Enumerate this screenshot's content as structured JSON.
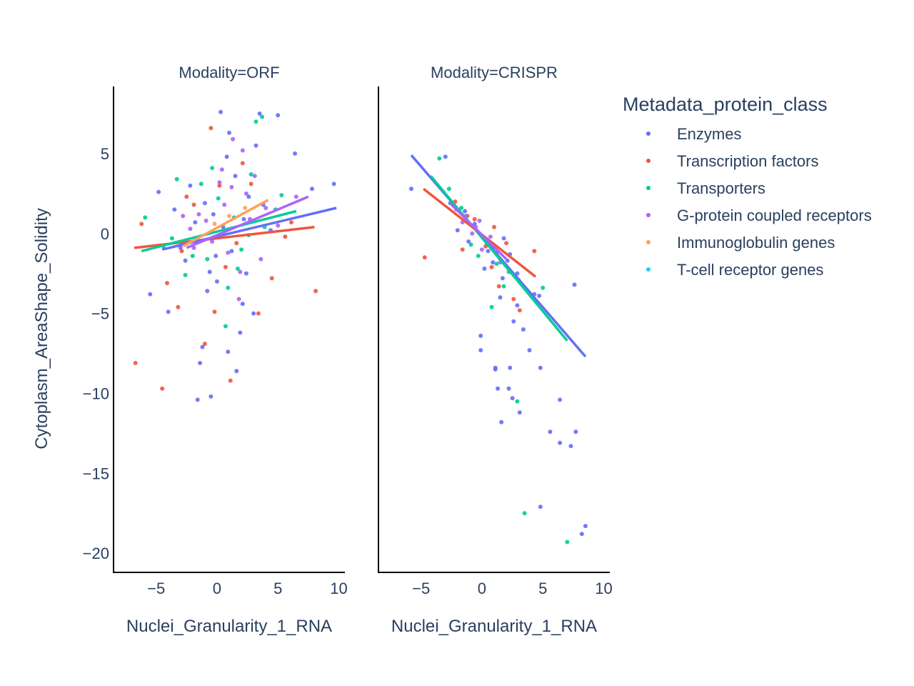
{
  "chart_data": {
    "type": "scatter",
    "legend_title": "Metadata_protein_class",
    "legend_placement": "right",
    "grid": false,
    "categories": [
      {
        "name": "Enzymes",
        "color": "#636efa"
      },
      {
        "name": "Transcription factors",
        "color": "#ef553b"
      },
      {
        "name": "Transporters",
        "color": "#00cc96"
      },
      {
        "name": "G-protein coupled receptors",
        "color": "#ab63fa"
      },
      {
        "name": "Immunoglobulin genes",
        "color": "#ffa15a"
      },
      {
        "name": "T-cell receptor genes",
        "color": "#19d3f3"
      }
    ],
    "xlabel": "Nuclei_Granularity_1_RNA",
    "ylabel": "Cytoplasm_AreaShape_Solidity",
    "xlim": [
      -8.5,
      10.5
    ],
    "ylim": [
      -21.2,
      9.2
    ],
    "x_ticks": [
      {
        "v": -5,
        "label": "−5"
      },
      {
        "v": 0,
        "label": "0"
      },
      {
        "v": 5,
        "label": "5"
      },
      {
        "v": 10,
        "label": "10"
      }
    ],
    "y_ticks": [
      {
        "v": 5,
        "label": "5"
      },
      {
        "v": 0,
        "label": "0"
      },
      {
        "v": -5,
        "label": "−5"
      },
      {
        "v": -10,
        "label": "−10"
      },
      {
        "v": -15,
        "label": "−15"
      },
      {
        "v": -20,
        "label": "−20"
      }
    ],
    "panels": [
      {
        "title": "Modality=ORF",
        "trendlines": [
          {
            "series": "Transcription factors",
            "x": [
              -6.8,
              8.0
            ],
            "y": [
              -0.9,
              0.4
            ]
          },
          {
            "series": "Transporters",
            "x": [
              -6.2,
              6.5
            ],
            "y": [
              -1.1,
              1.4
            ]
          },
          {
            "series": "Enzymes",
            "x": [
              -4.5,
              9.8
            ],
            "y": [
              -1.0,
              1.6
            ]
          },
          {
            "series": "G-protein coupled receptors",
            "x": [
              -2.5,
              7.5
            ],
            "y": [
              -0.9,
              2.3
            ]
          },
          {
            "series": "Immunoglobulin genes",
            "x": [
              -2.8,
              4.2
            ],
            "y": [
              -0.8,
              2.1
            ]
          }
        ],
        "points": [
          {
            "series": "Enzymes",
            "x": [
              0.3,
              3.5,
              5.0,
              9.6,
              7.8,
              -4.8,
              -5.5,
              -1.6,
              -1.4,
              -0.5,
              1.6,
              1.9,
              3.0,
              -3.5,
              0.8,
              2.1,
              -2.2,
              -0.6,
              0.5,
              1.2,
              -1.0,
              2.6,
              -3.0,
              -1.8,
              3.8,
              0.0,
              1.5,
              -2.6,
              4.4,
              -0.3,
              2.4,
              -4.0,
              6.4,
              0.9,
              -1.2,
              1.0,
              -0.8,
              3.2,
              -0.1,
              2.2
            ],
            "y": [
              7.6,
              7.5,
              7.4,
              3.1,
              2.8,
              2.6,
              -3.8,
              -10.4,
              -8.1,
              -10.2,
              -8.6,
              -6.2,
              -5.0,
              1.5,
              4.8,
              -4.4,
              3.0,
              -2.4,
              0.4,
              -1.1,
              1.9,
              2.3,
              -0.9,
              0.7,
              1.8,
              -3.0,
              3.6,
              -1.7,
              0.2,
              1.2,
              -2.5,
              -4.9,
              5.0,
              -7.4,
              -7.1,
              6.3,
              -3.6,
              5.5,
              -1.4,
              0.9
            ]
          },
          {
            "series": "Transcription factors",
            "x": [
              -6.7,
              -4.5,
              -6.2,
              8.1,
              1.1,
              -2.5,
              -1.0,
              3.4,
              -0.5,
              2.1,
              4.5,
              -3.2,
              1.6,
              -1.9,
              0.7,
              5.6,
              -4.1,
              2.8,
              -0.2,
              6.1,
              0.2,
              -2.9
            ],
            "y": [
              -8.1,
              -9.7,
              0.6,
              -3.6,
              -9.2,
              2.3,
              -6.9,
              -5.0,
              6.6,
              4.4,
              -2.8,
              -4.6,
              -0.6,
              1.8,
              -2.1,
              -0.2,
              -3.1,
              3.1,
              -4.9,
              0.7,
              3.0,
              -1.1
            ]
          },
          {
            "series": "Transporters",
            "x": [
              3.2,
              3.7,
              -5.9,
              2.8,
              -3.3,
              0.7,
              1.7,
              -2.0,
              4.8,
              0.1,
              -1.3,
              2.6,
              -4.4,
              3.9,
              0.9,
              -0.8,
              1.4,
              5.3,
              -2.6,
              2.0,
              -0.4,
              -3.7
            ],
            "y": [
              7.0,
              7.3,
              1.0,
              3.7,
              3.4,
              -5.8,
              -2.2,
              -1.4,
              1.5,
              2.2,
              3.1,
              -0.1,
              -0.8,
              0.4,
              -3.4,
              -1.6,
              1.0,
              2.4,
              -2.6,
              -1.0,
              4.1,
              -0.3
            ]
          },
          {
            "series": "G-protein coupled receptors",
            "x": [
              1.3,
              2.1,
              6.5,
              0.4,
              -1.5,
              1.8,
              3.1,
              -0.9,
              2.4,
              0.9,
              -2.2,
              4.0,
              1.2,
              -0.4,
              2.7,
              0.6,
              3.6,
              -1.9,
              1.9,
              0.2,
              5.0,
              -2.8
            ],
            "y": [
              5.9,
              5.2,
              2.3,
              4.0,
              1.2,
              -4.1,
              3.6,
              0.8,
              2.5,
              -1.2,
              0.3,
              1.6,
              2.9,
              -0.5,
              0.9,
              1.8,
              -1.6,
              -0.9,
              -2.4,
              3.2,
              0.5,
              1.1
            ]
          },
          {
            "series": "Immunoglobulin genes",
            "x": [
              -0.2,
              1.0,
              2.3
            ],
            "y": [
              0.6,
              1.1,
              1.6
            ]
          }
        ]
      },
      {
        "title": "Modality=CRISPR",
        "trendlines": [
          {
            "series": "Enzymes",
            "x": [
              -5.8,
              8.5
            ],
            "y": [
              4.9,
              -7.7
            ]
          },
          {
            "series": "Transporters",
            "x": [
              -4.2,
              7.0
            ],
            "y": [
              3.6,
              -6.7
            ]
          },
          {
            "series": "Transcription factors",
            "x": [
              -4.8,
              4.4
            ],
            "y": [
              2.8,
              -2.7
            ]
          },
          {
            "series": "G-protein coupled receptors",
            "x": [
              -2.5,
              2.0
            ],
            "y": [
              1.8,
              -1.6
            ]
          }
        ],
        "points": [
          {
            "series": "Enzymes",
            "x": [
              -3.0,
              -5.8,
              -0.1,
              -0.1,
              1.1,
              1.3,
              2.2,
              1.6,
              2.3,
              1.1,
              2.5,
              3.1,
              3.9,
              4.8,
              5.6,
              6.4,
              7.7,
              7.3,
              8.5,
              8.2,
              4.8,
              6.4,
              7.6,
              4.3,
              4.7,
              2.1,
              2.9,
              1.5,
              2.6,
              3.4,
              2.9,
              -1.4,
              0.5,
              -0.6,
              -2.0,
              1.8,
              0.2,
              -1.1,
              0.9,
              -2.6,
              2.3,
              1.7
            ],
            "y": [
              4.8,
              2.8,
              -6.4,
              -7.3,
              -8.4,
              -9.7,
              -9.7,
              -11.8,
              -8.4,
              -8.5,
              -10.3,
              -11.2,
              -7.3,
              -8.4,
              -12.4,
              -13.1,
              -12.4,
              -13.3,
              -18.3,
              -18.8,
              -17.1,
              -10.4,
              -3.2,
              -3.8,
              -3.9,
              -1.7,
              -2.5,
              -4.0,
              -5.5,
              -6.0,
              -4.5,
              1.4,
              -1.1,
              0.6,
              0.2,
              -0.3,
              -2.2,
              -0.5,
              -1.8,
              1.9,
              -1.3,
              -2.8
            ]
          },
          {
            "series": "Transcription factors",
            "x": [
              -4.7,
              -1.2,
              3.1,
              4.3,
              2.0,
              1.4,
              -0.6,
              0.8,
              -2.2,
              2.6,
              1.0,
              -1.6,
              3.0,
              0.3
            ],
            "y": [
              -1.5,
              1.1,
              -4.8,
              -1.1,
              -0.6,
              -3.3,
              0.9,
              -2.1,
              2.0,
              -4.1,
              0.4,
              -1.0,
              -2.9,
              -0.8
            ]
          },
          {
            "series": "Transporters",
            "x": [
              -3.5,
              2.9,
              3.5,
              7.0,
              5.0,
              0.8,
              1.8,
              -1.7,
              -0.3,
              2.2,
              1.2,
              -2.7,
              0.1,
              -0.9
            ],
            "y": [
              4.7,
              -10.5,
              -17.5,
              -19.3,
              -3.4,
              -4.6,
              -3.3,
              1.6,
              -1.4,
              -2.4,
              -1.9,
              2.8,
              -0.2,
              -0.7
            ]
          },
          {
            "series": "G-protein coupled receptors",
            "x": [
              -0.5,
              0.4,
              -1.3,
              1.2,
              -0.8,
              0.7,
              0.0,
              -1.6,
              1.5,
              -0.2,
              0.9,
              -2.1
            ],
            "y": [
              0.4,
              -0.6,
              1.1,
              -1.2,
              0.0,
              -0.2,
              -1.0,
              0.7,
              -1.8,
              0.8,
              -0.9,
              1.5
            ]
          }
        ]
      }
    ]
  }
}
